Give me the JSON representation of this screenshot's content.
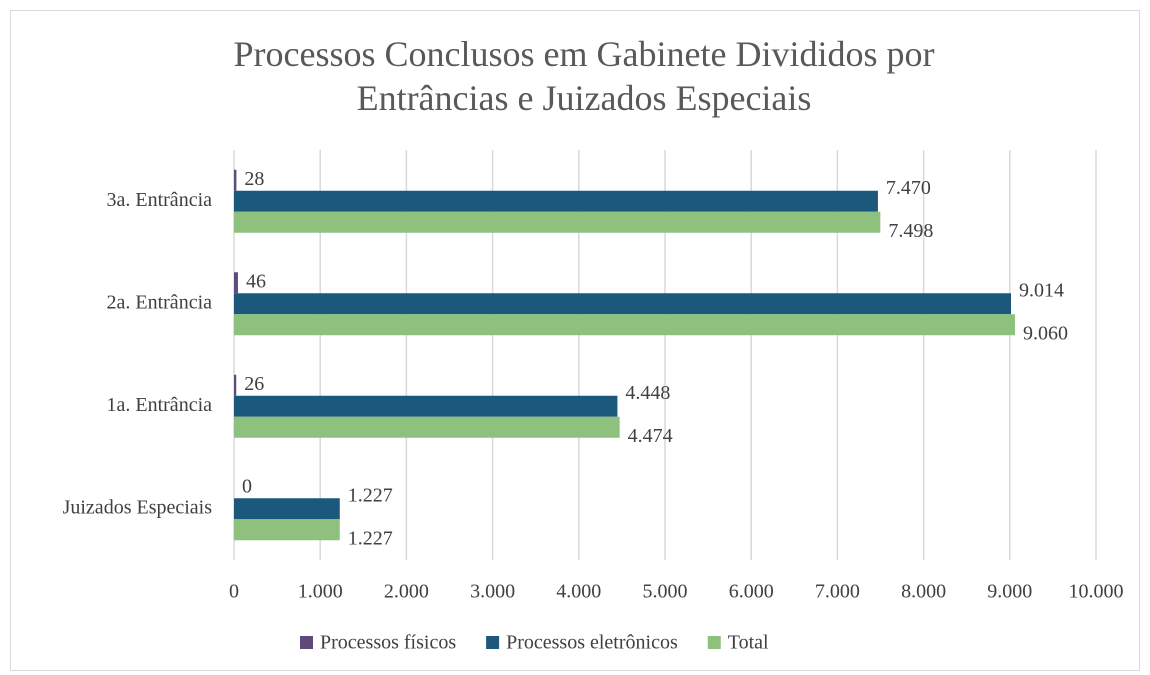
{
  "chart_data": {
    "type": "bar",
    "orientation": "horizontal",
    "title": "Processos Conclusos em Gabinete Divididos por Entrâncias e Juizados Especiais",
    "categories": [
      "3a. Entrância",
      "2a. Entrância",
      "1a. Entrância",
      "Juizados Especiais"
    ],
    "series": [
      {
        "name": "Processos físicos",
        "color": "#604a7b",
        "values": [
          28,
          46,
          26,
          0
        ],
        "value_labels": [
          "28",
          "46",
          "26",
          "0"
        ]
      },
      {
        "name": "Processos eletrônicos",
        "color": "#1b587c",
        "values": [
          7470,
          9014,
          4448,
          1227
        ],
        "value_labels": [
          "7.470",
          "9.014",
          "4.448",
          "1.227"
        ]
      },
      {
        "name": "Total",
        "color": "#8fc17e",
        "values": [
          7498,
          9060,
          4474,
          1227
        ],
        "value_labels": [
          "7.498",
          "9.060",
          "4.474",
          "1.227"
        ]
      }
    ],
    "xlim": [
      0,
      10000
    ],
    "xticks": [
      0,
      {
        "value": 1000,
        "label": "1.000"
      },
      {
        "value": 2000,
        "label": "2.000"
      },
      {
        "value": 3000,
        "label": "3.000"
      },
      {
        "value": 4000,
        "label": "4.000"
      },
      {
        "value": 5000,
        "label": "5.000"
      },
      {
        "value": 6000,
        "label": "6.000"
      },
      {
        "value": 7000,
        "label": "7.000"
      },
      {
        "value": 8000,
        "label": "8.000"
      },
      {
        "value": 9000,
        "label": "9.000"
      },
      {
        "value": 10000,
        "label": "10.000"
      }
    ],
    "grid": true,
    "legend": "bottom"
  }
}
